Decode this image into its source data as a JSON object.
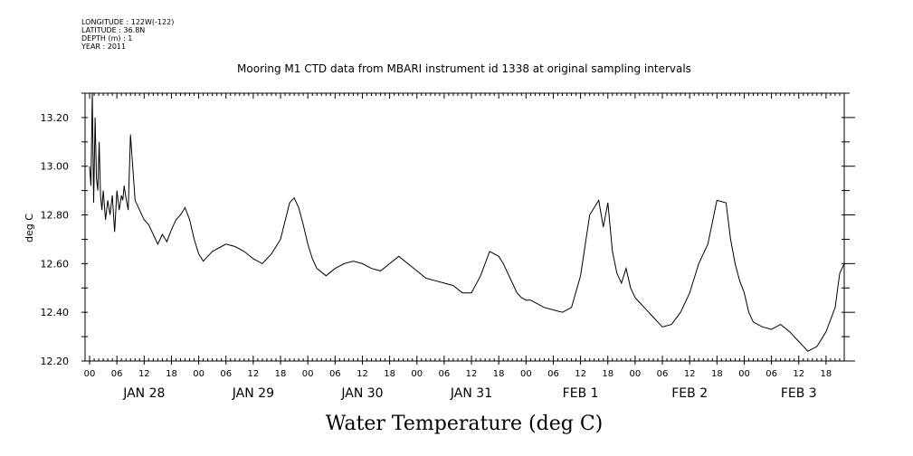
{
  "metadata": {
    "longitude": "LONGITUDE : 122W(-122)",
    "latitude": "LATITUDE : 36.8N",
    "depth": "DEPTH (m) : 1",
    "year": "YEAR : 2011"
  },
  "chart_data": {
    "type": "line",
    "title": "Mooring M1 CTD data from MBARI instrument id 1338 at original sampling intervals",
    "xlabel": "Water Temperature (deg C)",
    "ylabel": "deg C",
    "ylim": [
      12.2,
      13.3
    ],
    "y_ticks": [
      "12.20",
      "12.40",
      "12.60",
      "12.80",
      "13.00",
      "13.20"
    ],
    "x_range_hours": [
      -1,
      166
    ],
    "hour_ticks": [
      "00",
      "06",
      "12",
      "18",
      "00",
      "06",
      "12",
      "18",
      "00",
      "06",
      "12",
      "18",
      "00",
      "06",
      "12",
      "18",
      "00",
      "06",
      "12",
      "18",
      "00",
      "06",
      "12",
      "18",
      "00",
      "06",
      "12",
      "18"
    ],
    "day_labels": [
      "JAN 28",
      "JAN 29",
      "JAN 30",
      "JAN 31",
      "FEB  1",
      "FEB  2",
      "FEB  3"
    ],
    "series": [
      {
        "x": [
          0,
          0.3,
          0.6,
          0.9,
          1.2,
          1.5,
          1.8,
          2.1,
          2.4,
          2.7,
          3,
          3.5,
          4,
          4.5,
          5,
          5.5,
          6,
          6.5,
          7,
          7.3,
          7.6,
          8,
          8.5,
          9,
          10,
          11,
          12,
          13,
          14,
          15,
          16,
          17,
          18,
          19,
          20,
          21,
          22,
          23,
          24,
          25,
          26,
          27,
          28,
          29,
          30,
          32,
          34,
          36,
          38,
          40,
          42,
          44,
          45,
          46,
          47,
          48,
          49,
          50,
          52,
          54,
          56,
          58,
          60,
          62,
          64,
          66,
          68,
          70,
          72,
          74,
          76,
          78,
          80,
          82,
          84,
          86,
          88,
          90,
          91,
          92,
          93,
          94,
          95,
          96,
          97,
          98,
          99,
          100,
          102,
          104,
          106,
          108,
          110,
          112,
          113,
          114,
          115,
          116,
          117,
          118,
          119,
          120,
          121,
          122,
          124,
          126,
          128,
          130,
          132,
          134,
          136,
          138,
          140,
          141,
          142,
          143,
          144,
          145,
          146,
          148,
          150,
          152,
          154,
          156,
          158,
          160,
          162,
          164,
          165,
          166
        ],
        "values": [
          13.0,
          12.92,
          13.3,
          12.85,
          13.2,
          12.95,
          12.9,
          13.1,
          12.88,
          12.82,
          12.9,
          12.78,
          12.86,
          12.8,
          12.88,
          12.73,
          12.9,
          12.82,
          12.88,
          12.86,
          12.92,
          12.87,
          12.82,
          13.13,
          12.86,
          12.82,
          12.78,
          12.76,
          12.72,
          12.68,
          12.72,
          12.69,
          12.74,
          12.78,
          12.8,
          12.83,
          12.78,
          12.7,
          12.64,
          12.61,
          12.63,
          12.65,
          12.66,
          12.67,
          12.68,
          12.67,
          12.65,
          12.62,
          12.6,
          12.64,
          12.7,
          12.85,
          12.87,
          12.83,
          12.76,
          12.68,
          12.62,
          12.58,
          12.55,
          12.58,
          12.6,
          12.61,
          12.6,
          12.58,
          12.57,
          12.6,
          12.63,
          12.6,
          12.57,
          12.54,
          12.53,
          12.52,
          12.51,
          12.48,
          12.48,
          12.55,
          12.65,
          12.63,
          12.6,
          12.56,
          12.52,
          12.48,
          12.46,
          12.45,
          12.45,
          12.44,
          12.43,
          12.42,
          12.41,
          12.4,
          12.42,
          12.55,
          12.8,
          12.86,
          12.75,
          12.85,
          12.65,
          12.56,
          12.52,
          12.58,
          12.5,
          12.46,
          12.44,
          12.42,
          12.38,
          12.34,
          12.35,
          12.4,
          12.48,
          12.6,
          12.68,
          12.86,
          12.85,
          12.7,
          12.6,
          12.53,
          12.48,
          12.4,
          12.36,
          12.34,
          12.33,
          12.35,
          12.32,
          12.28,
          12.24,
          12.26,
          12.32,
          12.42,
          12.56,
          12.6
        ]
      }
    ]
  }
}
